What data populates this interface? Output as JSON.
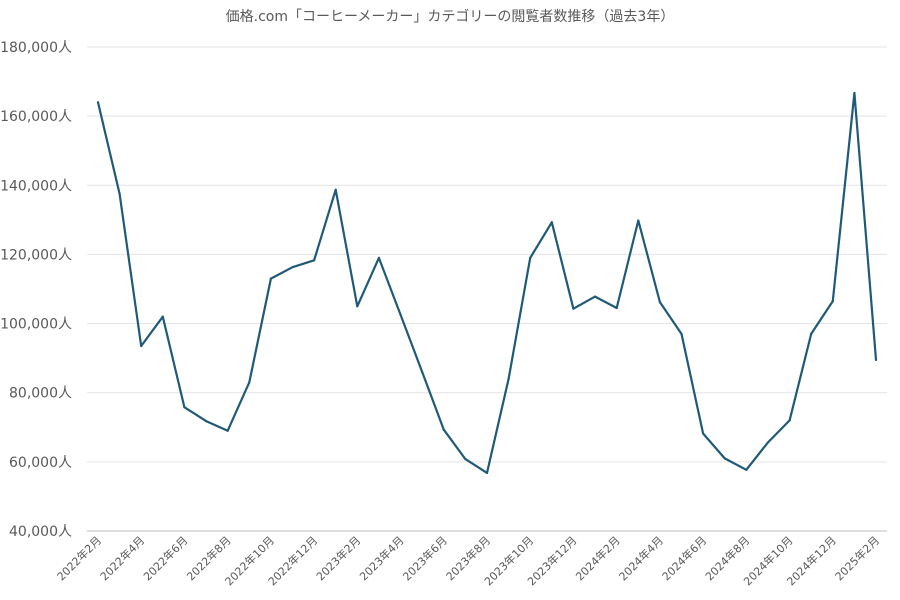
{
  "chart_data": {
    "type": "line",
    "title": "価格.com「コーヒーメーカー」カテゴリーの閲覧者数推移（過去3年）",
    "ylim": [
      40000,
      180000
    ],
    "ytick_labels": [
      "40,000人",
      "60,000人",
      "80,000人",
      "100,000人",
      "120,000人",
      "140,000人",
      "160,000人",
      "180,000人"
    ],
    "x": [
      "2022年2月",
      "2022年3月",
      "2022年4月",
      "2022年5月",
      "2022年6月",
      "2022年7月",
      "2022年8月",
      "2022年9月",
      "2022年10月",
      "2022年11月",
      "2022年12月",
      "2023年1月",
      "2023年2月",
      "2023年3月",
      "2023年4月",
      "2023年5月",
      "2023年6月",
      "2023年7月",
      "2023年8月",
      "2023年9月",
      "2023年10月",
      "2023年11月",
      "2023年12月",
      "2024年1月",
      "2024年2月",
      "2024年3月",
      "2024年4月",
      "2024年5月",
      "2024年6月",
      "2024年7月",
      "2024年8月",
      "2024年9月",
      "2024年10月",
      "2024年11月",
      "2024年12月",
      "2025年1月",
      "2025年2月"
    ],
    "xtick_labels": [
      "2022年2月",
      "2022年4月",
      "2022年6月",
      "2022年8月",
      "2022年10月",
      "2022年12月",
      "2023年2月",
      "2023年4月",
      "2023年6月",
      "2023年8月",
      "2023年10月",
      "2023年12月",
      "2024年2月",
      "2024年4月",
      "2024年6月",
      "2024年8月",
      "2024年10月",
      "2024年12月",
      "2025年2月"
    ],
    "series": [
      {
        "color": "#1f5a78",
        "values": [
          164000,
          137500,
          93500,
          102000,
          75800,
          71800,
          69000,
          83000,
          113000,
          116300,
          118300,
          138700,
          105000,
          119000,
          102500,
          86000,
          69300,
          60800,
          56800,
          84000,
          119000,
          129300,
          104300,
          107800,
          104500,
          129800,
          106200,
          97000,
          68200,
          61000,
          57700,
          65600,
          72000,
          97000,
          106500,
          166700,
          89500
        ]
      }
    ],
    "grid": true
  }
}
